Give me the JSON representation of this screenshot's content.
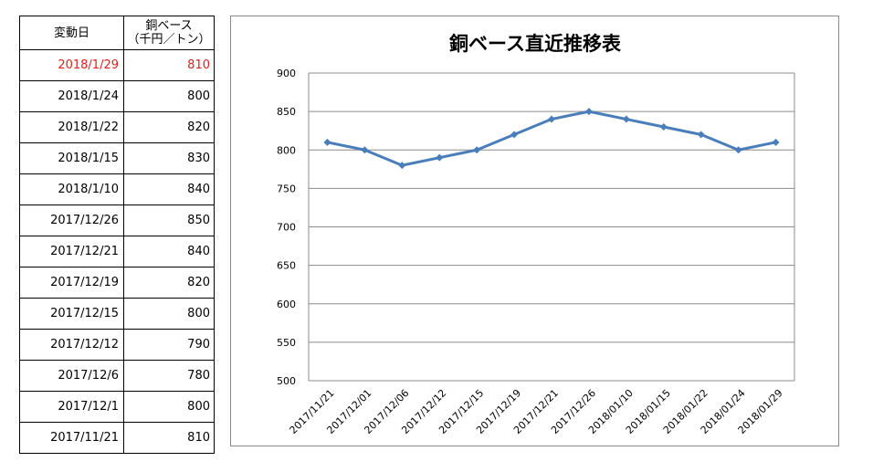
{
  "table": {
    "header_date": "変動日",
    "header_value_line1": "銅ベース",
    "header_value_line2": "（千円／トン）",
    "rows": [
      {
        "date": "2018/1/29",
        "value": "810"
      },
      {
        "date": "2018/1/24",
        "value": "800"
      },
      {
        "date": "2018/1/22",
        "value": "820"
      },
      {
        "date": "2018/1/15",
        "value": "830"
      },
      {
        "date": "2018/1/10",
        "value": "840"
      },
      {
        "date": "2017/12/26",
        "value": "850"
      },
      {
        "date": "2017/12/21",
        "value": "840"
      },
      {
        "date": "2017/12/19",
        "value": "820"
      },
      {
        "date": "2017/12/15",
        "value": "800"
      },
      {
        "date": "2017/12/12",
        "value": "790"
      },
      {
        "date": "2017/12/6",
        "value": "780"
      },
      {
        "date": "2017/12/1",
        "value": "800"
      },
      {
        "date": "2017/11/21",
        "value": "810"
      }
    ],
    "highlight_color": "#e0201d"
  },
  "chart_data": {
    "type": "line",
    "title": "銅ベース直近推移表",
    "xlabel": "",
    "ylabel": "",
    "categories": [
      "2017/11/21",
      "2017/12/01",
      "2017/12/06",
      "2017/12/12",
      "2017/12/15",
      "2017/12/19",
      "2017/12/21",
      "2017/12/26",
      "2018/01/10",
      "2018/01/15",
      "2018/01/22",
      "2018/01/24",
      "2018/01/29"
    ],
    "values": [
      810,
      800,
      780,
      790,
      800,
      820,
      840,
      850,
      840,
      830,
      820,
      800,
      810
    ],
    "ylim": [
      500,
      900
    ],
    "yticks": [
      500,
      550,
      600,
      650,
      700,
      750,
      800,
      850,
      900
    ],
    "grid": true,
    "legend": "none",
    "line_color": "#4a7ebb",
    "marker": "diamond"
  }
}
